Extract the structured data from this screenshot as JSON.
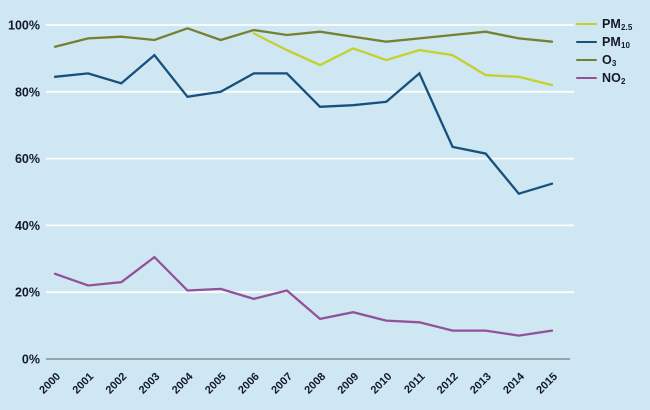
{
  "page": {
    "background_color": "#cee7f2",
    "gridline_color": "rgba(255,255,255,0.92)",
    "axis_line_color": "#8f9ba3",
    "text_color": "#14182b"
  },
  "chart_data": {
    "type": "line",
    "title": "",
    "xlabel": "",
    "ylabel": "",
    "x": [
      "2000",
      "2001",
      "2002",
      "2003",
      "2004",
      "2005",
      "2006",
      "2007",
      "2008",
      "2009",
      "2010",
      "2011",
      "2012",
      "2013",
      "2014",
      "2015"
    ],
    "ylim": [
      0,
      100
    ],
    "yticks": [
      "0%",
      "20%",
      "40%",
      "60%",
      "80%",
      "100%"
    ],
    "grid": "horizontal",
    "legend_position": "top-right",
    "series": [
      {
        "name": "PM2.5",
        "label_base": "PM",
        "label_sub": "2.5",
        "color": "#c6d02c",
        "values": [
          null,
          null,
          null,
          null,
          null,
          null,
          97.5,
          92.5,
          88,
          93,
          89.5,
          92.5,
          91,
          85,
          84.5,
          82
        ]
      },
      {
        "name": "PM10",
        "label_base": "PM",
        "label_sub": "10",
        "color": "#17507c",
        "values": [
          84.5,
          85.5,
          82.5,
          91,
          78.5,
          80,
          85.5,
          85.5,
          75.5,
          76,
          77,
          85.5,
          63.5,
          61.5,
          49.5,
          52.5
        ]
      },
      {
        "name": "O3",
        "label_base": "O",
        "label_sub": "3",
        "color": "#75812f",
        "values": [
          93.5,
          96,
          96.5,
          95.5,
          99,
          95.5,
          98.5,
          97,
          98,
          96.5,
          95,
          96,
          97,
          98,
          96,
          95
        ]
      },
      {
        "name": "NO2",
        "label_base": "NO",
        "label_sub": "2",
        "color": "#93519a",
        "values": [
          25.5,
          22,
          23,
          30.5,
          20.5,
          21,
          18,
          20.5,
          12,
          14,
          11.5,
          11,
          8.5,
          8.5,
          7,
          8.5
        ]
      }
    ]
  }
}
